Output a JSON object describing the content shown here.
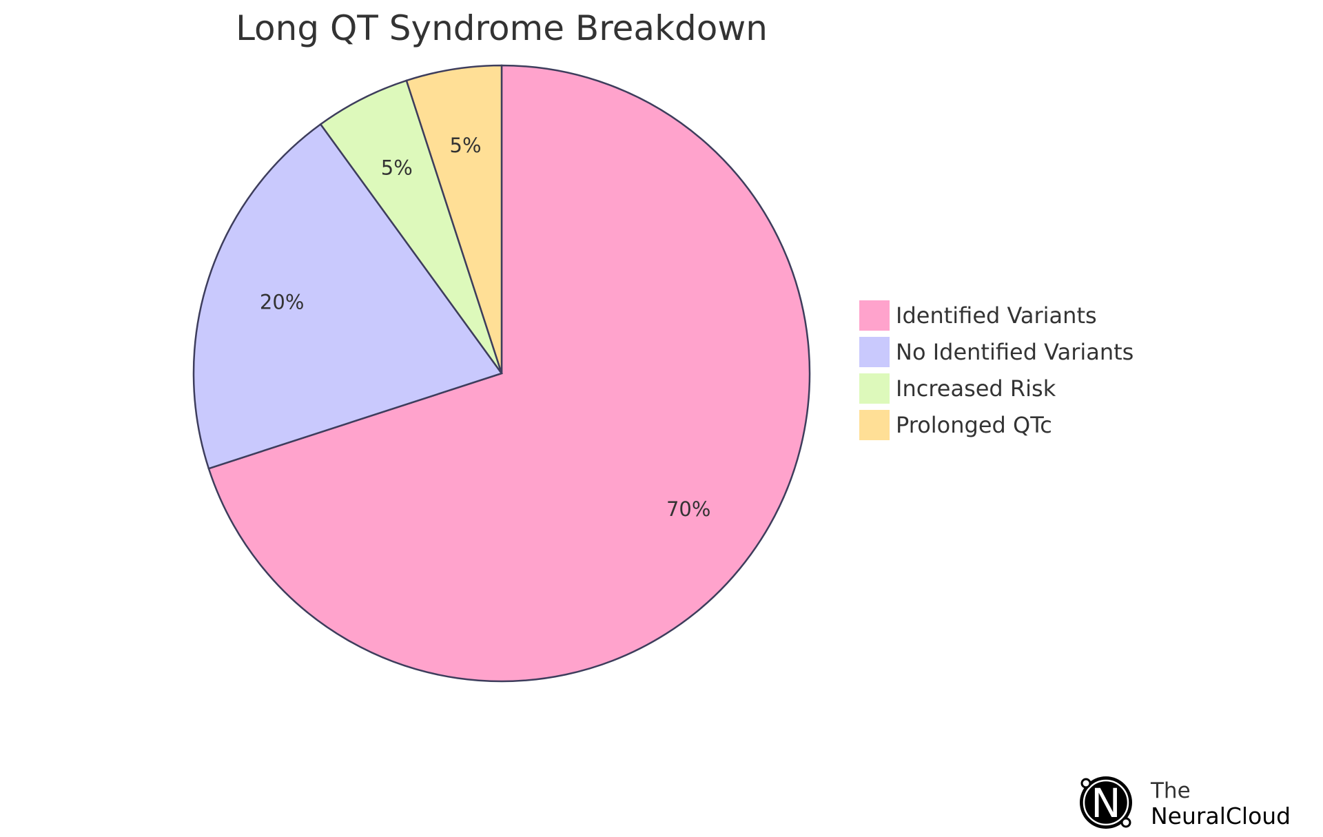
{
  "chart_data": {
    "type": "pie",
    "title": "Long QT Syndrome Breakdown",
    "slices": [
      {
        "label": "Identified Variants",
        "value": 70,
        "display": "70%",
        "color": "#FFA3CC"
      },
      {
        "label": "No Identified Variants",
        "value": 20,
        "display": "20%",
        "color": "#C9C9FD"
      },
      {
        "label": "Increased Risk",
        "value": 5,
        "display": "5%",
        "color": "#DDF9BB"
      },
      {
        "label": "Prolonged QTc",
        "value": 5,
        "display": "5%",
        "color": "#FFDF96"
      }
    ],
    "legend_position": "right",
    "stroke_color": "#3D3D5C"
  },
  "branding": {
    "line1": "The",
    "line2": "NeuralCloud",
    "logo_letter": "N"
  }
}
